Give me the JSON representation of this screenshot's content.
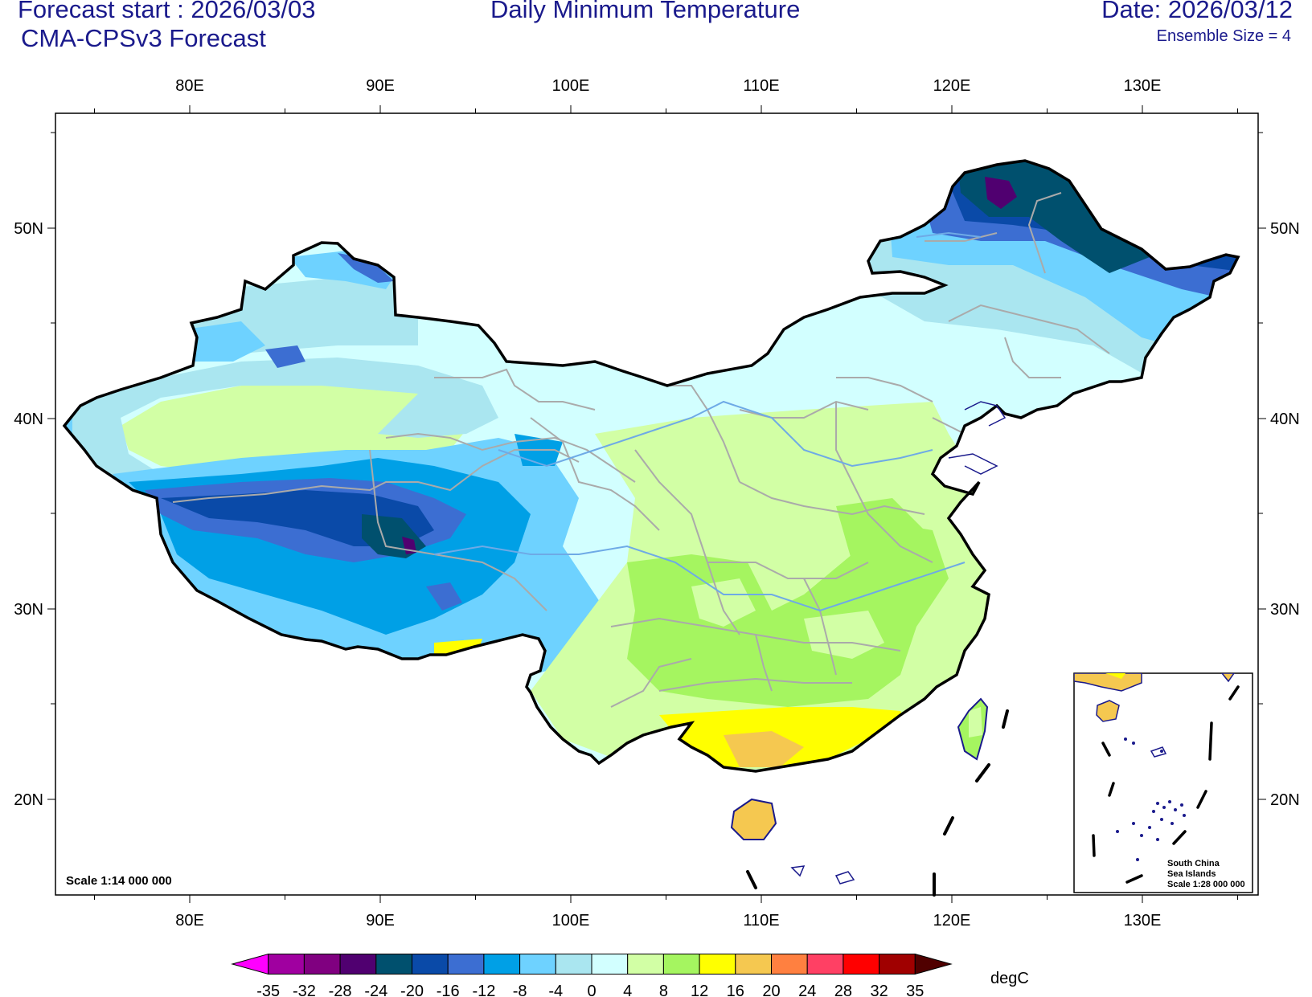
{
  "header": {
    "forecast_start": "Forecast start : 2026/03/03",
    "model": "CMA-CPSv3 Forecast",
    "title": "Daily Minimum Temperature",
    "date": "Date: 2026/03/12",
    "ensemble": "Ensemble Size = 4"
  },
  "axes": {
    "lon_labels": [
      "80E",
      "90E",
      "100E",
      "110E",
      "120E",
      "130E"
    ],
    "lat_labels": [
      "50N",
      "40N",
      "30N",
      "20N"
    ]
  },
  "map": {
    "scale_main": "Scale 1:14 000 000",
    "inset_line1": "South China",
    "inset_line2": "Sea Islands",
    "inset_scale": "Scale 1:28 000 000"
  },
  "colorbar": {
    "unit": "degC",
    "labels": [
      "-35",
      "-32",
      "-28",
      "-24",
      "-20",
      "-16",
      "-12",
      "-8",
      "-4",
      "0",
      "4",
      "8",
      "12",
      "16",
      "20",
      "24",
      "28",
      "32",
      "35"
    ],
    "colors": [
      "#ff00ff",
      "#a000a0",
      "#800080",
      "#500070",
      "#00506e",
      "#0a4aa8",
      "#3c6ed2",
      "#00a0e6",
      "#6ed2ff",
      "#aae6f0",
      "#d2ffff",
      "#d2ffa5",
      "#a5f560",
      "#ffff00",
      "#f5c850",
      "#ff8040",
      "#ff4064",
      "#ff0000",
      "#a00000",
      "#500000"
    ]
  }
}
